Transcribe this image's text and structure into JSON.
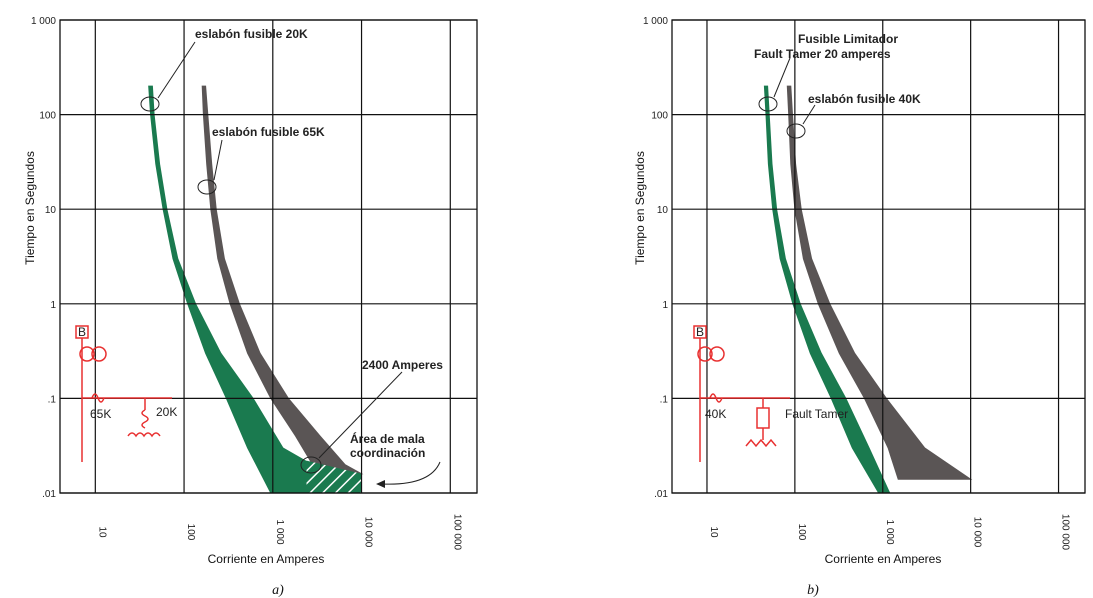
{
  "chart_data": [
    {
      "type": "line",
      "xscale": "log",
      "yscale": "log",
      "xlim": [
        4,
        200000
      ],
      "ylim": [
        0.01,
        1000
      ],
      "grid": true,
      "x_ticks": [
        "10",
        "100",
        "1 000",
        "10 000",
        "100 000"
      ],
      "y_ticks": [
        "1 000",
        "100",
        "10",
        "1",
        ".1",
        ".01"
      ],
      "xlabel": "Corriente en Amperes",
      "ylabel": "Tiempo en Segundos",
      "caption": "a)",
      "series": [
        {
          "name": "eslabón fusible 20K",
          "color": "#1a7a4f",
          "min_x": [
            40,
            42,
            48,
            58,
            75,
            110,
            175,
            300,
            520,
            950
          ],
          "max_x": [
            44,
            46,
            53,
            64,
            85,
            135,
            260,
            600,
            1300,
            10000
          ],
          "y": [
            200,
            100,
            30,
            10,
            3,
            1,
            0.3,
            0.1,
            0.03,
            0.01
          ]
        },
        {
          "name": "eslabón fusible 65K",
          "color": "#5a5555",
          "min_x": [
            160,
            165,
            180,
            200,
            240,
            330,
            520,
            950,
            1800,
            2800,
            3300
          ],
          "max_x": [
            175,
            185,
            205,
            230,
            285,
            420,
            720,
            1500,
            3400,
            6500,
            10000
          ],
          "y": [
            200,
            100,
            30,
            10,
            3,
            1,
            0.3,
            0.1,
            0.04,
            0.02,
            0.016
          ]
        }
      ],
      "annotations": [
        {
          "text": "eslabón fusible 20K",
          "x": 45,
          "y": 130
        },
        {
          "text": "eslabón fusible 65K",
          "x": 175,
          "y": 18
        },
        {
          "text": "2400 Amperes",
          "x": 2400,
          "y": 0.028
        },
        {
          "text": "Área de mala",
          "x": 6000,
          "y": 0.035
        },
        {
          "text": "coordinación",
          "x": 6000,
          "y": 0.028
        }
      ],
      "diagram": {
        "breaker": "B",
        "fuse_upstream": "65K",
        "fuse_downstream": "20K",
        "color": "#e83030"
      }
    },
    {
      "type": "line",
      "xscale": "log",
      "yscale": "log",
      "xlim": [
        4,
        200000
      ],
      "ylim": [
        0.01,
        1000
      ],
      "grid": true,
      "x_ticks": [
        "10",
        "100",
        "1 000",
        "10 000",
        "100 000"
      ],
      "y_ticks": [
        "1 000",
        "100",
        "10",
        "1",
        ".1",
        ".01"
      ],
      "xlabel": "Corriente en Amperes",
      "ylabel": "Tiempo en Segundos",
      "caption": "b)",
      "series": [
        {
          "name": "Fusible Limitador Fault Tamer 20 amperes",
          "color": "#1a7a4f",
          "min_x": [
            45,
            47,
            50,
            56,
            68,
            95,
            150,
            260,
            450,
            900
          ],
          "max_x": [
            49,
            51,
            55,
            62,
            78,
            115,
            200,
            380,
            700,
            1200
          ],
          "y": [
            200,
            100,
            30,
            10,
            3,
            1,
            0.3,
            0.1,
            0.03,
            0.01
          ]
        },
        {
          "name": "eslabón fusible 40K",
          "color": "#5a5555",
          "min_x": [
            82,
            85,
            90,
            100,
            125,
            185,
            320,
            620,
            1150,
            1500
          ],
          "max_x": [
            90,
            94,
            102,
            118,
            155,
            250,
            480,
            1100,
            3000,
            10000
          ],
          "y": [
            200,
            100,
            30,
            10,
            3,
            1,
            0.3,
            0.1,
            0.03,
            0.014
          ]
        }
      ],
      "annotations": [
        {
          "text": "Fusible Limitador",
          "x": 48,
          "y": 130
        },
        {
          "text": "Fault Tamer 20 amperes",
          "x": 48,
          "y": 130
        },
        {
          "text": "eslabón fusible 40K",
          "x": 95,
          "y": 65
        }
      ],
      "diagram": {
        "breaker": "B",
        "fuse_upstream": "40K",
        "fuse_downstream": "Fault Tamer",
        "color": "#e83030"
      }
    }
  ]
}
